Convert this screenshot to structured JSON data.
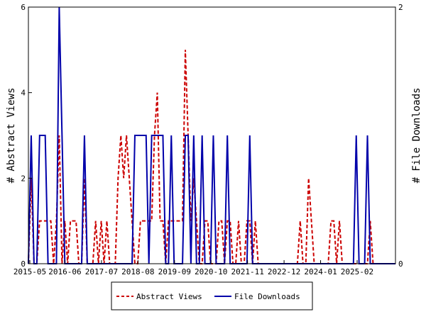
{
  "chart_data": {
    "type": "line",
    "x_tick_labels": [
      "2015-05",
      "2016-06",
      "2017-07",
      "2018-08",
      "2019-09",
      "2020-10",
      "2021-11",
      "2022-12",
      "2024-01",
      "2025-02"
    ],
    "left_axis": {
      "label": "# Abstract Views",
      "ylim": [
        0,
        6
      ],
      "ticks": [
        "0",
        "2",
        "4",
        "6"
      ]
    },
    "right_axis": {
      "label": "# File Downloads",
      "ylim": [
        0,
        2
      ],
      "ticks": [
        "0",
        "2"
      ]
    },
    "grid": false,
    "legend_position": "bottom",
    "series": [
      {
        "name": "Abstract Views",
        "axis": "left",
        "color": "#cc0000",
        "style": "dashed",
        "values": [
          0,
          2,
          0,
          0,
          1,
          1,
          1,
          1,
          1,
          0,
          1,
          3,
          0,
          1,
          0,
          1,
          1,
          1,
          0,
          0,
          2,
          0,
          0,
          0,
          1,
          0,
          1,
          0,
          1,
          0,
          0,
          0,
          2,
          3,
          2,
          3,
          2,
          1,
          0,
          0,
          1,
          1,
          1,
          1,
          1,
          3,
          4,
          1,
          1,
          0,
          1,
          1,
          1,
          1,
          1,
          1,
          5,
          3,
          1,
          2,
          1,
          0,
          0,
          1,
          1,
          0,
          0,
          0,
          1,
          1,
          0,
          1,
          1,
          0,
          0,
          1,
          0,
          0,
          1,
          1,
          0,
          1,
          0,
          0,
          0,
          0,
          0,
          0,
          0,
          0,
          0,
          0,
          0,
          0,
          0,
          0,
          0,
          1,
          0,
          0,
          2,
          1,
          0,
          0,
          0,
          0,
          0,
          0,
          1,
          1,
          0,
          1,
          0,
          0,
          0,
          0,
          0,
          0,
          0,
          0,
          0,
          0,
          1,
          0,
          0,
          0,
          0,
          0,
          0,
          0,
          0,
          0
        ]
      },
      {
        "name": "File Downloads",
        "axis": "right",
        "color": "#0000aa",
        "style": "solid",
        "values": [
          0,
          1,
          0,
          0,
          1,
          1,
          1,
          0,
          0,
          0,
          0,
          2,
          1,
          0,
          0,
          0,
          0,
          0,
          0,
          0,
          1,
          0,
          0,
          0,
          0,
          0,
          0,
          0,
          0,
          0,
          0,
          0,
          0,
          0,
          0,
          0,
          0,
          0,
          1,
          1,
          1,
          1,
          1,
          0,
          1,
          1,
          1,
          1,
          1,
          0,
          0,
          1,
          0,
          0,
          0,
          0,
          1,
          1,
          0,
          1,
          0,
          0,
          1,
          0,
          0,
          0,
          1,
          0,
          0,
          0,
          0,
          1,
          0,
          0,
          0,
          0,
          0,
          0,
          0,
          1,
          0,
          0,
          0,
          0,
          0,
          0,
          0,
          0,
          0,
          0,
          0,
          0,
          0,
          0,
          0,
          0,
          0,
          0,
          0,
          0,
          0,
          0,
          0,
          0,
          0,
          0,
          0,
          0,
          0,
          0,
          0,
          0,
          0,
          0,
          0,
          0,
          0,
          1,
          0,
          0,
          0,
          1,
          0,
          0,
          0,
          0,
          0,
          0,
          0,
          0,
          0,
          0
        ]
      }
    ]
  }
}
